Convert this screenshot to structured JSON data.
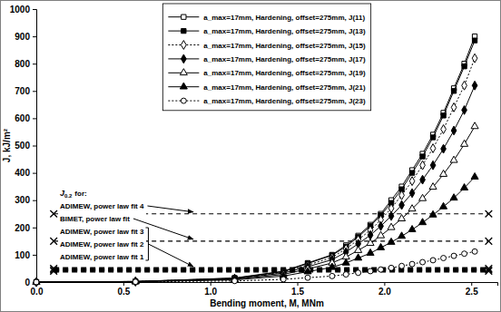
{
  "chart_data": {
    "type": "line",
    "x_label": "Bending moment, M, MNm",
    "y_label": "J, kJ/m²",
    "xlim": [
      0,
      2.65
    ],
    "ylim": [
      0,
      1000
    ],
    "xticks": [
      {
        "value": 0,
        "label": "0.0"
      },
      0.5,
      {
        "value": 1,
        "label": "1.0"
      },
      1.5,
      {
        "value": 2,
        "label": "2.0"
      },
      2.5
    ],
    "yticks": [
      0,
      100,
      200,
      300,
      400,
      500,
      600,
      700,
      800,
      900,
      1000
    ],
    "grid": false,
    "legend": "upper-center",
    "x": [
      0,
      0.57,
      1.14,
      1.42,
      1.56,
      1.7,
      1.78,
      1.85,
      1.92,
      1.98,
      2.04,
      2.1,
      2.16,
      2.22,
      2.28,
      2.34,
      2.4,
      2.46,
      2.52
    ],
    "series": [
      {
        "name": "a_max=17mm, Hardening, offset=275mm, J(11)",
        "color": "#000000",
        "marker": "square-open",
        "line_style": "solid",
        "values": [
          0,
          2,
          15,
          40,
          70,
          100,
          135,
          170,
          210,
          250,
          300,
          350,
          410,
          470,
          540,
          620,
          710,
          800,
          900
        ]
      },
      {
        "name": "a_max=17mm, Hardening, offset=275mm, J(13)",
        "color": "#000000",
        "marker": "square-filled",
        "line_style": "solid",
        "values": [
          0,
          2,
          14,
          38,
          68,
          98,
          130,
          165,
          205,
          245,
          290,
          340,
          400,
          460,
          530,
          610,
          700,
          790,
          885
        ]
      },
      {
        "name": "a_max=17mm, Hardening, offset=275mm, J(15)",
        "color": "#000000",
        "marker": "diamond-open",
        "line_style": "dotted",
        "values": [
          0,
          2,
          13,
          36,
          62,
          90,
          122,
          155,
          190,
          228,
          270,
          318,
          370,
          428,
          490,
          560,
          640,
          720,
          820
        ]
      },
      {
        "name": "a_max=17mm, Hardening, offset=275mm, J(17)",
        "color": "#000000",
        "marker": "diamond-filled",
        "line_style": "solid",
        "values": [
          0,
          2,
          12,
          33,
          56,
          82,
          110,
          140,
          172,
          205,
          242,
          282,
          326,
          375,
          428,
          488,
          555,
          630,
          720
        ]
      },
      {
        "name": "a_max=17mm, Hardening, offset=275mm, J(19)",
        "color": "#000000",
        "marker": "triangle-open",
        "line_style": "solid",
        "values": [
          0,
          2,
          10,
          28,
          48,
          70,
          92,
          116,
          142,
          170,
          200,
          232,
          268,
          306,
          348,
          395,
          446,
          505,
          570
        ]
      },
      {
        "name": "a_max=17mm, Hardening, offset=275mm, J(21)",
        "color": "#000000",
        "marker": "triangle-filled",
        "line_style": "solid",
        "values": [
          0,
          1,
          8,
          22,
          38,
          54,
          70,
          88,
          106,
          126,
          146,
          168,
          192,
          218,
          246,
          276,
          308,
          345,
          385
        ]
      },
      {
        "name": "a_max=17mm, Hardening, offset=275mm, J(23)",
        "color": "#000000",
        "marker": "circle-open",
        "line_style": "dotted",
        "values": [
          0,
          1,
          4,
          10,
          16,
          22,
          28,
          34,
          40,
          46,
          52,
          59,
          66,
          73,
          80,
          88,
          96,
          104,
          112
        ]
      }
    ],
    "annotation": {
      "symbol": "J",
      "subscript": "0.2",
      "text": "for:"
    },
    "reference_lines": [
      {
        "label": "ADIMEW, power law fit 4",
        "color": "#000000",
        "x": [
          0.1,
          2.6
        ],
        "values": [
          250,
          250
        ],
        "line_style": "dashed",
        "marker": "x"
      },
      {
        "label": "BIMET, power law fit",
        "color": "#000000",
        "x": [
          0.1,
          2.6
        ],
        "values": [
          150,
          150
        ],
        "line_style": "dashed",
        "marker": "x"
      },
      {
        "label": "ADIMEW, power law fit 3",
        "color": "#000000",
        "x": [
          0.1,
          2.6
        ],
        "values": [
          50,
          50
        ],
        "line_style": "heavy-dashed",
        "marker": "x"
      },
      {
        "label": "ADIMEW, power law fit 2",
        "color": "#000000",
        "x": [
          0.1,
          2.6
        ],
        "values": [
          45,
          45
        ],
        "line_style": "heavy-dashed",
        "marker": "x"
      },
      {
        "label": "ADIMEW, power law fit 1",
        "color": "#000000",
        "x": [
          0.1,
          2.6
        ],
        "values": [
          40,
          40
        ],
        "line_style": "heavy-dashed",
        "marker": "x"
      }
    ]
  }
}
